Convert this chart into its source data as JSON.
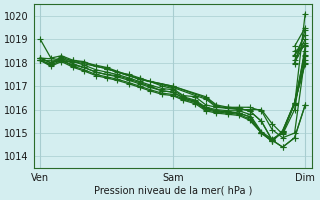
{
  "bg_color": "#d4eef0",
  "grid_color": "#a8cdd0",
  "line_color": "#1a6b1a",
  "marker": "+",
  "markersize": 4,
  "linewidth": 0.9,
  "title": "Pression niveau de la mer( hPa )",
  "ylim": [
    1013.5,
    1020.5
  ],
  "yticks": [
    1014,
    1015,
    1016,
    1017,
    1018,
    1019,
    1020
  ],
  "xtick_positions": [
    0.0,
    1.0,
    2.0
  ],
  "xtick_labels": [
    "Ven",
    "Sam",
    "Dim"
  ],
  "xlim": [
    -0.05,
    2.05
  ],
  "series": [
    [
      0.0,
      1019.0,
      0.08,
      1018.2,
      0.16,
      1018.3,
      0.25,
      1018.1,
      0.33,
      1018.05,
      0.42,
      1017.85,
      0.5,
      1017.75,
      0.58,
      1017.6,
      0.67,
      1017.5,
      0.75,
      1017.35,
      0.83,
      1017.2,
      0.92,
      1017.0,
      1.0,
      1016.9,
      1.08,
      1016.6,
      1.17,
      1016.55,
      1.25,
      1016.2,
      1.33,
      1016.1,
      1.42,
      1016.1,
      1.5,
      1016.05,
      1.58,
      1015.95,
      1.67,
      1015.5,
      1.75,
      1014.7,
      1.83,
      1014.4,
      1.92,
      1014.8,
      2.0,
      1016.2
    ],
    [
      0.0,
      1018.2,
      0.08,
      1018.0,
      0.16,
      1018.1,
      0.25,
      1017.9,
      0.33,
      1017.8,
      0.42,
      1017.6,
      0.5,
      1017.5,
      0.58,
      1017.45,
      0.67,
      1017.3,
      0.75,
      1017.15,
      0.83,
      1017.0,
      0.92,
      1016.8,
      1.0,
      1016.75,
      1.08,
      1016.5,
      1.17,
      1016.35,
      1.25,
      1016.05,
      1.33,
      1015.95,
      1.42,
      1015.9,
      1.5,
      1015.85,
      1.58,
      1015.7,
      1.67,
      1015.0,
      1.75,
      1014.65,
      1.83,
      1015.1,
      1.92,
      1016.3,
      2.0,
      1017.95
    ],
    [
      0.0,
      1018.2,
      0.08,
      1018.0,
      0.16,
      1018.25,
      0.25,
      1018.05,
      0.33,
      1017.9,
      0.42,
      1017.7,
      0.5,
      1017.6,
      0.58,
      1017.5,
      0.67,
      1017.35,
      0.75,
      1017.2,
      0.83,
      1017.05,
      0.92,
      1016.9,
      1.0,
      1016.85,
      1.08,
      1016.55,
      1.17,
      1016.4,
      1.25,
      1016.1,
      1.33,
      1016.0,
      1.42,
      1015.95,
      1.5,
      1015.95,
      1.58,
      1015.8,
      1.67,
      1015.05,
      1.75,
      1014.75,
      1.83,
      1015.0,
      1.92,
      1016.25,
      2.0,
      1018.1
    ],
    [
      0.0,
      1018.1,
      0.08,
      1017.95,
      0.16,
      1018.2,
      0.25,
      1017.95,
      0.33,
      1017.8,
      0.42,
      1017.6,
      0.5,
      1017.5,
      0.58,
      1017.4,
      0.67,
      1017.25,
      0.75,
      1017.1,
      0.83,
      1016.95,
      0.92,
      1016.8,
      1.0,
      1016.75,
      1.08,
      1016.5,
      1.17,
      1016.35,
      1.25,
      1016.05,
      1.33,
      1015.95,
      1.42,
      1015.9,
      1.5,
      1015.85,
      1.58,
      1015.7,
      1.67,
      1015.0,
      1.75,
      1014.7,
      1.83,
      1015.05,
      1.92,
      1016.25,
      2.0,
      1018.0
    ],
    [
      0.0,
      1018.1,
      0.08,
      1017.9,
      0.16,
      1018.1,
      0.25,
      1017.85,
      0.33,
      1017.7,
      0.42,
      1017.5,
      0.5,
      1017.4,
      0.58,
      1017.3,
      0.67,
      1017.15,
      0.75,
      1017.0,
      0.83,
      1016.85,
      0.92,
      1016.7,
      1.0,
      1016.65,
      1.08,
      1016.45,
      1.17,
      1016.3,
      1.25,
      1016.0,
      1.33,
      1015.9,
      1.42,
      1015.85,
      1.5,
      1015.8,
      1.58,
      1015.6,
      1.67,
      1015.0,
      1.75,
      1014.65,
      1.83,
      1015.1,
      1.92,
      1016.3,
      2.0,
      1018.35
    ],
    [
      0.0,
      1018.1,
      0.08,
      1017.85,
      0.16,
      1018.05,
      0.25,
      1017.8,
      0.33,
      1017.65,
      0.42,
      1017.45,
      0.5,
      1017.35,
      0.58,
      1017.25,
      0.67,
      1017.1,
      0.75,
      1016.95,
      0.83,
      1016.8,
      0.92,
      1016.65,
      1.0,
      1016.6,
      1.08,
      1016.4,
      1.17,
      1016.25,
      1.25,
      1015.95,
      1.33,
      1015.85,
      1.42,
      1015.8,
      1.5,
      1015.75,
      1.58,
      1015.55,
      1.67,
      1015.0,
      1.75,
      1014.65,
      1.83,
      1015.05,
      1.92,
      1016.3,
      2.0,
      1018.5
    ],
    [
      0.0,
      1018.1,
      0.25,
      1018.05,
      0.5,
      1017.75,
      0.75,
      1017.3,
      1.0,
      1016.95,
      1.17,
      1016.6,
      1.25,
      1016.45,
      1.33,
      1016.1,
      1.42,
      1016.05,
      1.5,
      1016.0,
      1.58,
      1016.0,
      1.67,
      1016.0,
      1.75,
      1015.4,
      1.83,
      1014.95,
      1.92,
      1016.0,
      2.0,
      1018.7
    ],
    [
      0.0,
      1018.2,
      0.25,
      1018.1,
      0.5,
      1017.8,
      0.75,
      1017.3,
      1.0,
      1017.0,
      1.25,
      1016.55,
      1.33,
      1016.2,
      1.42,
      1016.1,
      1.5,
      1016.1,
      1.58,
      1016.1,
      1.67,
      1015.95,
      1.75,
      1015.15,
      1.83,
      1014.8,
      1.92,
      1015.0,
      2.0,
      1018.3
    ],
    [
      0.5,
      1017.75,
      0.75,
      1017.3,
      1.0,
      1017.0,
      1.25,
      1016.5,
      1.33,
      1016.15,
      1.42,
      1016.05,
      1.5,
      1016.05,
      1.58,
      1015.95,
      1.67,
      1015.5,
      1.75,
      1014.7,
      1.83,
      1014.4,
      1.92,
      1014.8,
      2.0,
      1016.2
    ]
  ],
  "right_segments": [
    [
      [
        1.92,
        2.0
      ],
      [
        1016.2,
        1020.1
      ]
    ],
    [
      [
        1.92,
        2.0
      ],
      [
        1017.95,
        1019.4
      ]
    ],
    [
      [
        1.92,
        2.0
      ],
      [
        1018.1,
        1019.0
      ]
    ],
    [
      [
        1.92,
        2.0
      ],
      [
        1018.0,
        1018.85
      ]
    ],
    [
      [
        1.92,
        2.0
      ],
      [
        1018.35,
        1018.75
      ]
    ],
    [
      [
        1.92,
        2.0
      ],
      [
        1018.5,
        1018.7
      ]
    ],
    [
      [
        1.92,
        2.0
      ],
      [
        1018.7,
        1019.5
      ]
    ],
    [
      [
        1.92,
        2.0
      ],
      [
        1018.3,
        1019.2
      ]
    ]
  ]
}
